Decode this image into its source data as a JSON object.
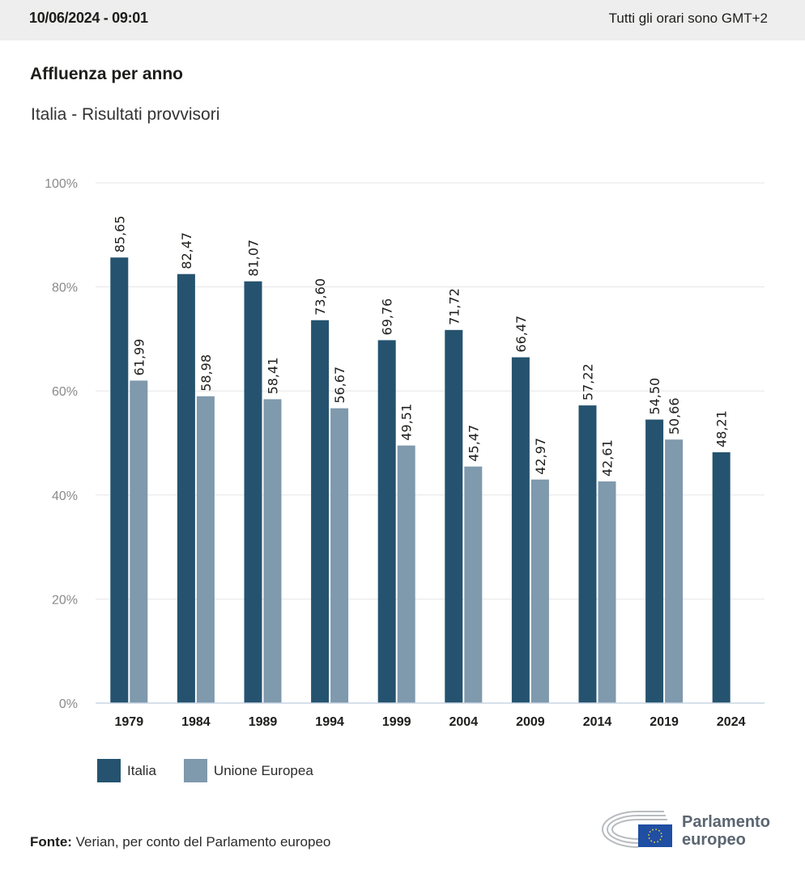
{
  "header": {
    "datetime": "10/06/2024 - 09:01",
    "timezone_note": "Tutti gli orari sono GMT+2"
  },
  "colors": {
    "italia": "#25536f",
    "ue": "#7f99ad",
    "grid": "#e6e6e6",
    "axis": "#c9d5e3",
    "tick_label": "#8a8a8a"
  },
  "chart_data": {
    "type": "bar",
    "title": "Affluenza per anno",
    "subtitle": "Italia - Risultati provvisori",
    "xlabel": "",
    "ylabel": "",
    "ylim": [
      0,
      100
    ],
    "y_ticks": [
      0,
      20,
      40,
      60,
      80,
      100
    ],
    "y_tick_labels": [
      "0%",
      "20%",
      "40%",
      "60%",
      "80%",
      "100%"
    ],
    "grid": true,
    "legend_position": "bottom-left",
    "categories": [
      "1979",
      "1984",
      "1989",
      "1994",
      "1999",
      "2004",
      "2009",
      "2014",
      "2019",
      "2024"
    ],
    "series": [
      {
        "name": "Italia",
        "values": [
          85.65,
          82.47,
          81.07,
          73.6,
          69.76,
          71.72,
          66.47,
          57.22,
          54.5,
          48.21
        ],
        "labels": [
          "85,65",
          "82,47",
          "81,07",
          "73,60",
          "69,76",
          "71,72",
          "66,47",
          "57,22",
          "54,50",
          "48,21"
        ]
      },
      {
        "name": "Unione Europea",
        "values": [
          61.99,
          58.98,
          58.41,
          56.67,
          49.51,
          45.47,
          42.97,
          42.61,
          50.66,
          null
        ],
        "labels": [
          "61,99",
          "58,98",
          "58,41",
          "56,67",
          "49,51",
          "45,47",
          "42,97",
          "42,61",
          "50,66",
          null
        ]
      }
    ]
  },
  "legend": {
    "items": [
      {
        "label": "Italia"
      },
      {
        "label": "Unione Europea"
      }
    ]
  },
  "footer": {
    "source_label": "Fonte:",
    "source_text": " Verian, per conto del Parlamento europeo",
    "logo_line1": "Parlamento",
    "logo_line2": "europeo"
  }
}
